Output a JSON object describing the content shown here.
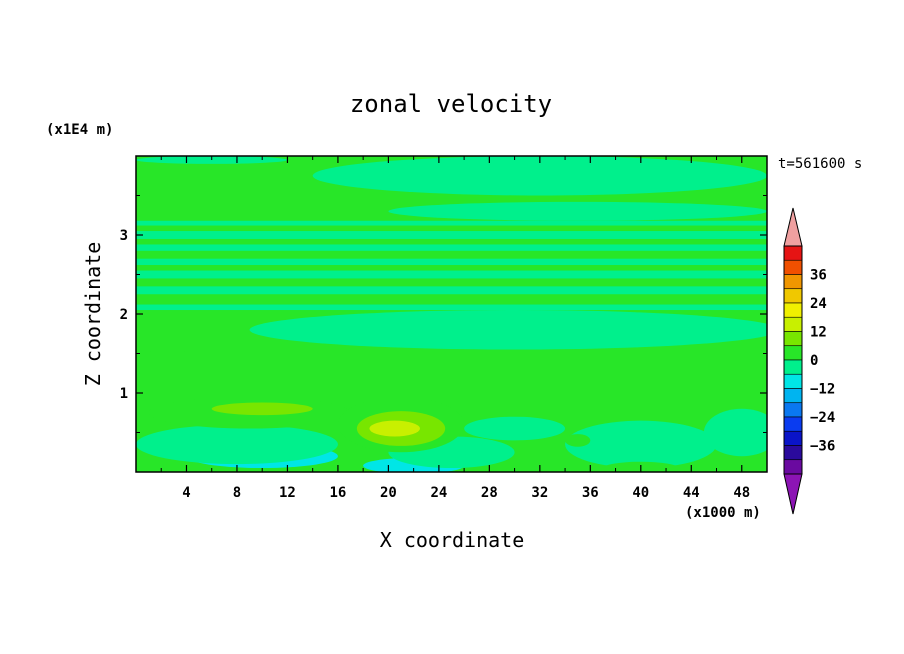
{
  "chart_data": {
    "type": "heatmap",
    "title": "zonal velocity",
    "time_label": "t=561600 s",
    "xlabel": "X coordinate",
    "ylabel": "Z coordinate",
    "x_scale_label": "(x1000 m)",
    "y_scale_label": "(x1E4 m)",
    "xlim": [
      0,
      50
    ],
    "ylim": [
      0,
      4
    ],
    "x_ticks": [
      "4",
      "8",
      "12",
      "16",
      "20",
      "24",
      "28",
      "32",
      "36",
      "40",
      "44",
      "48"
    ],
    "x_tick_values": [
      4,
      8,
      12,
      16,
      20,
      24,
      28,
      32,
      36,
      40,
      44,
      48
    ],
    "y_ticks": [
      "1",
      "2",
      "3"
    ],
    "y_tick_values": [
      1,
      2,
      3
    ],
    "colorbar": {
      "levels": [
        -42,
        -36,
        -30,
        -24,
        -18,
        -12,
        -6,
        0,
        6,
        12,
        18,
        24,
        30,
        36,
        42
      ],
      "tick_labels": [
        "36",
        "24",
        "12",
        "0",
        "−12",
        "−24",
        "−36"
      ],
      "tick_values": [
        36,
        24,
        12,
        0,
        -12,
        -24,
        -36
      ],
      "colors": [
        "#6a0aa0",
        "#2a0a9c",
        "#0a14c8",
        "#0a3cf0",
        "#0a78f0",
        "#00b4f0",
        "#00e6e6",
        "#00f08c",
        "#28e628",
        "#78e600",
        "#c8f000",
        "#f0f000",
        "#f0c800",
        "#f09600",
        "#f05000",
        "#e61414"
      ],
      "under_color": "#8c14b4",
      "over_color": "#f0a0a0"
    },
    "regions": [
      {
        "value": -8,
        "cx": 10,
        "cz": 0.2,
        "rx": 6,
        "rz": 0.15
      },
      {
        "value": -8,
        "cx": 22,
        "cz": 0.08,
        "rx": 4,
        "rz": 0.1
      },
      {
        "value": -8,
        "cx": 39,
        "cz": 0.4,
        "rx": 2.5,
        "rz": 0.2
      },
      {
        "value": -3,
        "cx": 8,
        "cz": 0.35,
        "rx": 8,
        "rz": 0.25
      },
      {
        "value": -3,
        "cx": 40,
        "cz": 0.35,
        "rx": 6,
        "rz": 0.3
      },
      {
        "value": -3,
        "cx": 25,
        "cz": 0.25,
        "rx": 5,
        "rz": 0.2
      },
      {
        "value": -3,
        "cx": 30,
        "cz": 0.55,
        "rx": 4,
        "rz": 0.15
      },
      {
        "value": -3,
        "cx": 48,
        "cz": 0.5,
        "rx": 3,
        "rz": 0.3
      },
      {
        "value": 3,
        "cx": 9,
        "cz": 0.75,
        "rx": 8,
        "rz": 0.2
      },
      {
        "value": 3,
        "cx": 21,
        "cz": 0.6,
        "rx": 5,
        "rz": 0.35
      },
      {
        "value": 3,
        "cx": 2.5,
        "cz": 1.5,
        "rx": 1.5,
        "rz": 0.06
      },
      {
        "value": 3,
        "cx": 35,
        "cz": 0.4,
        "rx": 1,
        "rz": 0.08
      },
      {
        "value": 3,
        "cx": 40,
        "cz": 0.05,
        "rx": 3,
        "rz": 0.08
      },
      {
        "value": 8,
        "cx": 10,
        "cz": 0.8,
        "rx": 4,
        "rz": 0.08
      },
      {
        "value": 8,
        "cx": 21,
        "cz": 0.55,
        "rx": 3.5,
        "rz": 0.22
      },
      {
        "value": 12,
        "cx": 20.5,
        "cz": 0.55,
        "rx": 2,
        "rz": 0.1
      },
      {
        "value": -2,
        "cx": 30,
        "cz": 1.8,
        "rx": 21,
        "rz": 0.25
      },
      {
        "value": -2,
        "cx": 35,
        "cz": 3.3,
        "rx": 15,
        "rz": 0.12
      },
      {
        "value": -2,
        "cx": 32,
        "cz": 3.75,
        "rx": 18,
        "rz": 0.25
      },
      {
        "value": -2,
        "cx": 6,
        "cz": 3.95,
        "rx": 6,
        "rz": 0.05
      }
    ],
    "bands": [
      {
        "value": -2,
        "z0": 2.05,
        "z1": 2.12
      },
      {
        "value": -2,
        "z0": 2.25,
        "z1": 2.35
      },
      {
        "value": -2,
        "z0": 2.45,
        "z1": 2.55
      },
      {
        "value": -2,
        "z0": 2.62,
        "z1": 2.7
      },
      {
        "value": -2,
        "z0": 2.8,
        "z1": 2.88
      },
      {
        "value": -2,
        "z0": 2.95,
        "z1": 3.05
      },
      {
        "value": -2,
        "z0": 3.12,
        "z1": 3.18
      }
    ]
  }
}
